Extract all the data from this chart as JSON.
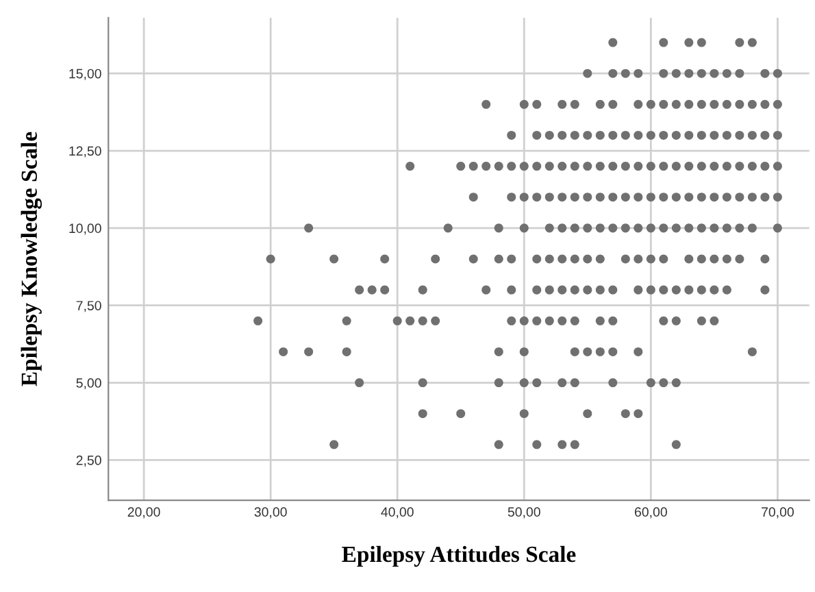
{
  "chart_data": {
    "type": "scatter",
    "xlabel": "Epilepsy Attitudes Scale",
    "ylabel": "Epilepsy Knowledge Scale",
    "xlim": [
      17.2,
      72.5
    ],
    "ylim": [
      1.2,
      16.8
    ],
    "xticks": [
      {
        "value": 20,
        "label": "20,00"
      },
      {
        "value": 30,
        "label": "30,00"
      },
      {
        "value": 40,
        "label": "40,00"
      },
      {
        "value": 50,
        "label": "50,00"
      },
      {
        "value": 60,
        "label": "60,00"
      },
      {
        "value": 70,
        "label": "70,00"
      }
    ],
    "yticks": [
      {
        "value": 2.5,
        "label": "2,50"
      },
      {
        "value": 5,
        "label": "5,00"
      },
      {
        "value": 7.5,
        "label": "7,50"
      },
      {
        "value": 10,
        "label": "10,00"
      },
      {
        "value": 12.5,
        "label": "12,50"
      },
      {
        "value": 15,
        "label": "15,00"
      }
    ],
    "grid": true,
    "marker": "circle",
    "legend": false,
    "series": [
      {
        "color": "#707070",
        "x": [
          57,
          61,
          63,
          64,
          67,
          68
        ],
        "values": [
          16,
          16,
          16,
          16,
          16,
          16
        ]
      },
      {
        "color": "#707070",
        "x": [
          55,
          57,
          58,
          59,
          61,
          62,
          63,
          64,
          65,
          66,
          67,
          69,
          70
        ],
        "values": [
          15,
          15,
          15,
          15,
          15,
          15,
          15,
          15,
          15,
          15,
          15,
          15,
          15
        ]
      },
      {
        "color": "#707070",
        "x": [
          47,
          50,
          51,
          53,
          54,
          56,
          57,
          59,
          60,
          61,
          62,
          63,
          64,
          65,
          66,
          67,
          68,
          69,
          70
        ],
        "values": [
          14,
          14,
          14,
          14,
          14,
          14,
          14,
          14,
          14,
          14,
          14,
          14,
          14,
          14,
          14,
          14,
          14,
          14,
          14
        ]
      },
      {
        "color": "#707070",
        "x": [
          49,
          51,
          52,
          53,
          54,
          55,
          56,
          57,
          58,
          59,
          60,
          61,
          62,
          63,
          64,
          65,
          66,
          67,
          68,
          69,
          70
        ],
        "values": [
          13,
          13,
          13,
          13,
          13,
          13,
          13,
          13,
          13,
          13,
          13,
          13,
          13,
          13,
          13,
          13,
          13,
          13,
          13,
          13,
          13
        ]
      },
      {
        "color": "#707070",
        "x": [
          41,
          45,
          46,
          47,
          48,
          49,
          50,
          51,
          52,
          53,
          54,
          55,
          56,
          57,
          58,
          59,
          60,
          61,
          62,
          63,
          64,
          65,
          66,
          67,
          68,
          69,
          70
        ],
        "values": [
          12,
          12,
          12,
          12,
          12,
          12,
          12,
          12,
          12,
          12,
          12,
          12,
          12,
          12,
          12,
          12,
          12,
          12,
          12,
          12,
          12,
          12,
          12,
          12,
          12,
          12,
          12
        ]
      },
      {
        "color": "#707070",
        "x": [
          46,
          49,
          50,
          51,
          52,
          53,
          54,
          55,
          56,
          57,
          58,
          59,
          60,
          61,
          62,
          63,
          64,
          65,
          66,
          67,
          68,
          69,
          70
        ],
        "values": [
          11,
          11,
          11,
          11,
          11,
          11,
          11,
          11,
          11,
          11,
          11,
          11,
          11,
          11,
          11,
          11,
          11,
          11,
          11,
          11,
          11,
          11,
          11
        ]
      },
      {
        "color": "#707070",
        "x": [
          33,
          44,
          48,
          50,
          52,
          53,
          54,
          55,
          56,
          57,
          58,
          59,
          60,
          61,
          62,
          63,
          64,
          65,
          66,
          67,
          68,
          70
        ],
        "values": [
          10,
          10,
          10,
          10,
          10,
          10,
          10,
          10,
          10,
          10,
          10,
          10,
          10,
          10,
          10,
          10,
          10,
          10,
          10,
          10,
          10,
          10
        ]
      },
      {
        "color": "#707070",
        "x": [
          30,
          35,
          39,
          43,
          46,
          48,
          49,
          51,
          52,
          53,
          54,
          55,
          56,
          58,
          59,
          60,
          61,
          63,
          64,
          65,
          66,
          67,
          69
        ],
        "values": [
          9,
          9,
          9,
          9,
          9,
          9,
          9,
          9,
          9,
          9,
          9,
          9,
          9,
          9,
          9,
          9,
          9,
          9,
          9,
          9,
          9,
          9,
          9
        ]
      },
      {
        "color": "#707070",
        "x": [
          37,
          38,
          39,
          42,
          47,
          49,
          51,
          52,
          53,
          54,
          55,
          56,
          57,
          59,
          60,
          61,
          62,
          63,
          64,
          65,
          66,
          69
        ],
        "values": [
          8,
          8,
          8,
          8,
          8,
          8,
          8,
          8,
          8,
          8,
          8,
          8,
          8,
          8,
          8,
          8,
          8,
          8,
          8,
          8,
          8,
          8
        ]
      },
      {
        "color": "#707070",
        "x": [
          29,
          36,
          40,
          41,
          42,
          43,
          49,
          50,
          51,
          52,
          53,
          54,
          56,
          57,
          61,
          62,
          64,
          65
        ],
        "values": [
          7,
          7,
          7,
          7,
          7,
          7,
          7,
          7,
          7,
          7,
          7,
          7,
          7,
          7,
          7,
          7,
          7,
          7
        ]
      },
      {
        "color": "#707070",
        "x": [
          31,
          33,
          36,
          48,
          50,
          54,
          55,
          56,
          57,
          59,
          68
        ],
        "values": [
          6,
          6,
          6,
          6,
          6,
          6,
          6,
          6,
          6,
          6,
          6
        ]
      },
      {
        "color": "#707070",
        "x": [
          37,
          42,
          48,
          50,
          51,
          53,
          54,
          57,
          60,
          61,
          62
        ],
        "values": [
          5,
          5,
          5,
          5,
          5,
          5,
          5,
          5,
          5,
          5,
          5
        ]
      },
      {
        "color": "#707070",
        "x": [
          42,
          45,
          50,
          55,
          58,
          59
        ],
        "values": [
          4,
          4,
          4,
          4,
          4,
          4
        ]
      },
      {
        "color": "#707070",
        "x": [
          35,
          48,
          51,
          53,
          54,
          62
        ],
        "values": [
          3,
          3,
          3,
          3,
          3,
          3
        ]
      }
    ]
  }
}
